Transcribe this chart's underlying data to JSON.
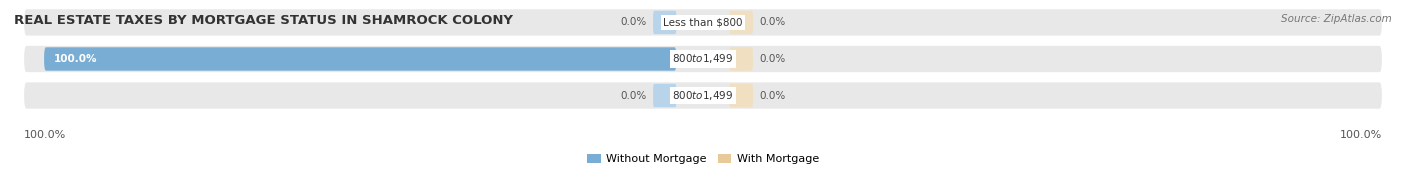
{
  "title": "REAL ESTATE TAXES BY MORTGAGE STATUS IN SHAMROCK COLONY",
  "source": "Source: ZipAtlas.com",
  "rows": [
    {
      "label": "Less than $800",
      "without_mortgage": 0.0,
      "with_mortgage": 0.0
    },
    {
      "label": "$800 to $1,499",
      "without_mortgage": 100.0,
      "with_mortgage": 0.0
    },
    {
      "label": "$800 to $1,499",
      "without_mortgage": 0.0,
      "with_mortgage": 0.0
    }
  ],
  "color_without": "#7aadd4",
  "color_with": "#e8c99a",
  "color_without_light": "#b8d4ea",
  "color_with_light": "#f0dfc0",
  "bar_bg_color": "#e8e8e8",
  "row_bg_color": "#f0f0f0",
  "max_value": 100.0,
  "left_axis_label": "100.0%",
  "right_axis_label": "100.0%",
  "legend_without": "Without Mortgage",
  "legend_with": "With Mortgage",
  "title_fontsize": 10,
  "label_fontsize": 8,
  "tick_fontsize": 8
}
